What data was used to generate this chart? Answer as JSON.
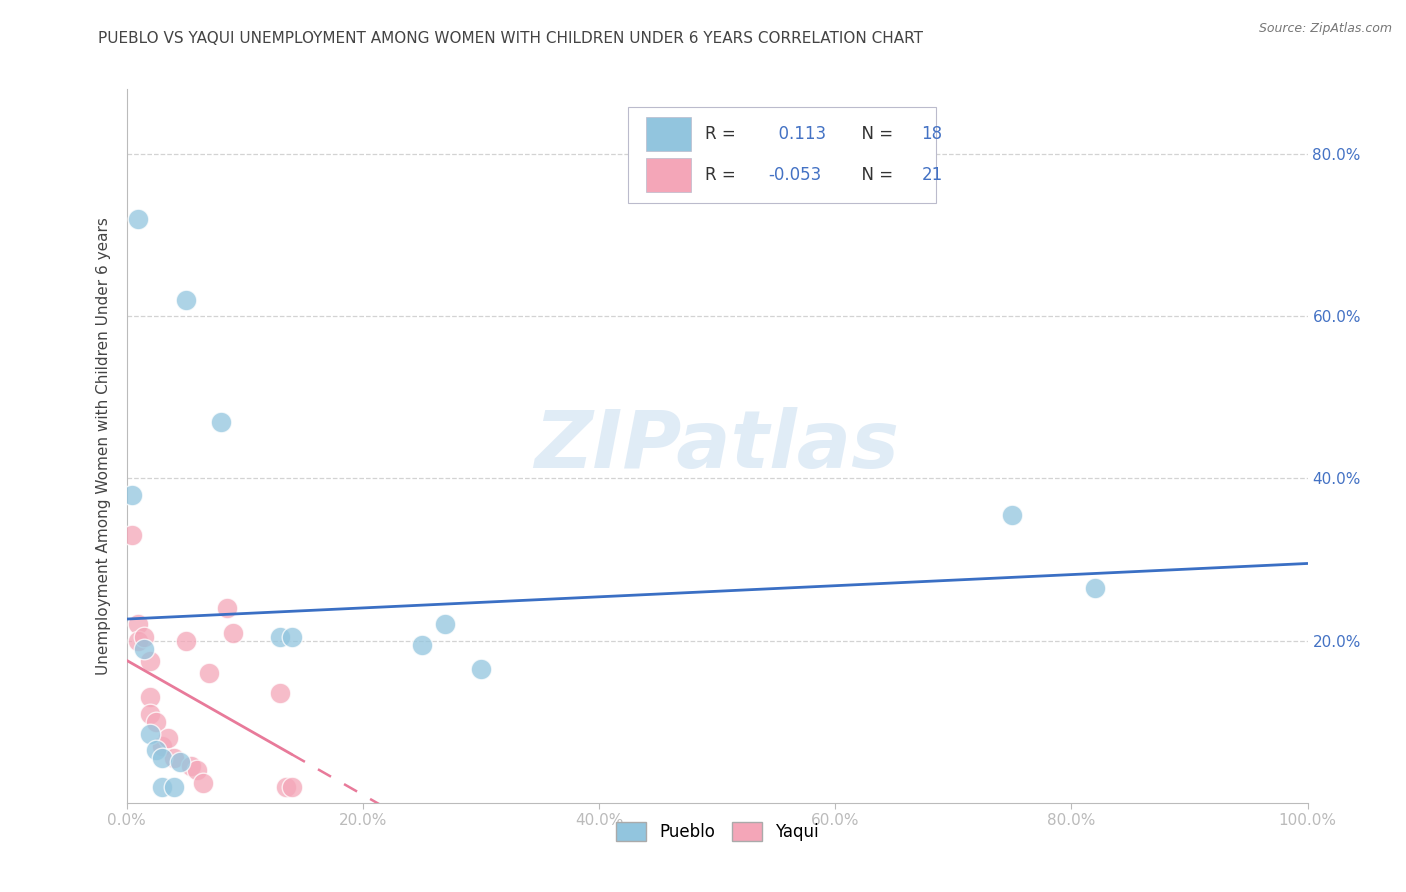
{
  "title": "PUEBLO VS YAQUI UNEMPLOYMENT AMONG WOMEN WITH CHILDREN UNDER 6 YEARS CORRELATION CHART",
  "source": "Source: ZipAtlas.com",
  "ylabel": "Unemployment Among Women with Children Under 6 years",
  "xlim": [
    0,
    1.0
  ],
  "ylim": [
    0,
    0.88
  ],
  "xticks": [
    0.0,
    0.2,
    0.4,
    0.6,
    0.8,
    1.0
  ],
  "xtick_labels": [
    "0.0%",
    "20.0%",
    "40.0%",
    "60.0%",
    "80.0%",
    "100.0%"
  ],
  "yticks": [
    0.0,
    0.2,
    0.4,
    0.6,
    0.8
  ],
  "ytick_labels": [
    "",
    "20.0%",
    "40.0%",
    "60.0%",
    "80.0%"
  ],
  "pueblo_color": "#92c5de",
  "yaqui_color": "#f4a6b8",
  "pueblo_line_color": "#3a6fc4",
  "yaqui_line_color": "#e87a9a",
  "pueblo_R": 0.113,
  "pueblo_N": 18,
  "yaqui_R": -0.053,
  "yaqui_N": 21,
  "pueblo_x": [
    0.01,
    0.05,
    0.08,
    0.005,
    0.13,
    0.14,
    0.015,
    0.02,
    0.025,
    0.03,
    0.25,
    0.27,
    0.3,
    0.03,
    0.04,
    0.75,
    0.82,
    0.045
  ],
  "pueblo_y": [
    0.72,
    0.62,
    0.47,
    0.38,
    0.205,
    0.205,
    0.19,
    0.085,
    0.065,
    0.055,
    0.195,
    0.22,
    0.165,
    0.02,
    0.02,
    0.355,
    0.265,
    0.05
  ],
  "yaqui_x": [
    0.005,
    0.01,
    0.01,
    0.015,
    0.02,
    0.02,
    0.02,
    0.025,
    0.03,
    0.035,
    0.04,
    0.05,
    0.055,
    0.06,
    0.065,
    0.07,
    0.085,
    0.09,
    0.13,
    0.135,
    0.14
  ],
  "yaqui_y": [
    0.33,
    0.22,
    0.2,
    0.205,
    0.175,
    0.13,
    0.11,
    0.1,
    0.07,
    0.08,
    0.055,
    0.2,
    0.045,
    0.04,
    0.025,
    0.16,
    0.24,
    0.21,
    0.135,
    0.02,
    0.02
  ],
  "watermark_text": "ZIPatlas",
  "watermark_color": "#c8ddf0",
  "background_color": "#ffffff",
  "grid_color": "#c8c8c8",
  "title_color": "#444444",
  "axis_tick_color": "#4472c4",
  "spine_color": "#bbbbbb",
  "legend_text_color": "#333333",
  "legend_value_color": "#4472c4",
  "legend_border_color": "#bbbbcc"
}
